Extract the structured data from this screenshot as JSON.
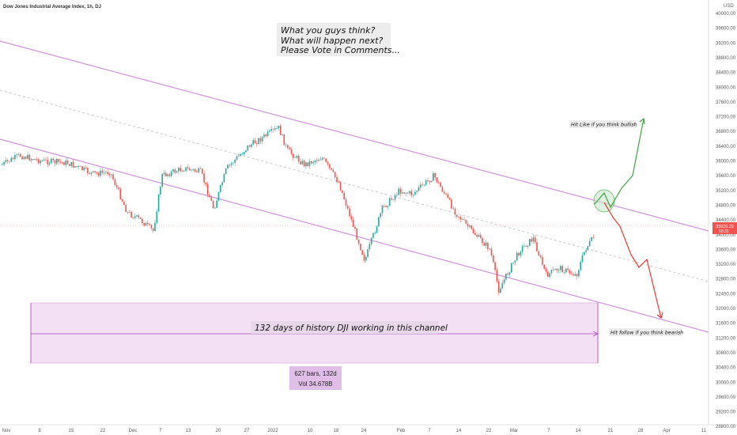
{
  "header": {
    "title": "Dow Jones Industrial Average Index, 1h, DJ"
  },
  "annotations": {
    "question": [
      "What you guys think?",
      "What will happen next?",
      "Please Vote in Comments..."
    ],
    "bullish": "Hit Like if you think bullish",
    "bearish": "Hit follow if you think bearish",
    "channel": "132 days of history DJI working in this channel",
    "range_bars": "627 bars, 132d",
    "range_vol": "Vol 34.678B"
  },
  "price_axis": {
    "currency": "USD",
    "labels": [
      "40000.00",
      "39600.00",
      "39200.00",
      "38800.00",
      "38400.00",
      "38000.00",
      "37600.00",
      "37200.00",
      "36800.00",
      "36400.00",
      "36000.00",
      "35600.00",
      "35200.00",
      "34800.00",
      "34400.00",
      "34000.00",
      "33600.00",
      "33200.00",
      "32800.00",
      "32400.00",
      "32000.00",
      "31600.00",
      "31200.00",
      "30800.00",
      "30400.00",
      "30000.00",
      "29600.00",
      "29200.00",
      "28800.00",
      "28400.00"
    ],
    "current_price": "33929.29",
    "current_time": "10:31"
  },
  "time_axis": {
    "labels": [
      "Nov",
      "8",
      "15",
      "22",
      "Dec",
      "7",
      "13",
      "20",
      "27",
      "2022",
      "10",
      "18",
      "24",
      "Feb",
      "7",
      "14",
      "22",
      "Mar",
      "7",
      "14",
      "21",
      "28",
      "Apr",
      "11"
    ]
  },
  "colors": {
    "channel": "#ce93d8",
    "up": "#26a69a",
    "down": "#ef5350",
    "bull_arrow": "#4caf50",
    "bear_arrow": "#e53935",
    "range_fill": "#f3e0f5"
  },
  "chart_data": {
    "type": "candlestick",
    "symbol": "Dow Jones Industrial Average Index",
    "interval": "1h",
    "y_range": [
      28300,
      40100
    ],
    "approx_closes": [
      [
        "2021-11-01",
        35900
      ],
      [
        "2021-11-05",
        36150
      ],
      [
        "2021-11-10",
        36000
      ],
      [
        "2021-11-16",
        35950
      ],
      [
        "2021-11-22",
        35650
      ],
      [
        "2021-11-26",
        35700
      ],
      [
        "2021-11-30",
        34600
      ],
      [
        "2021-12-03",
        34400
      ],
      [
        "2021-12-06",
        34100
      ],
      [
        "2021-12-08",
        35600
      ],
      [
        "2021-12-13",
        35800
      ],
      [
        "2021-12-17",
        35700
      ],
      [
        "2021-12-20",
        34700
      ],
      [
        "2021-12-23",
        35800
      ],
      [
        "2021-12-28",
        36400
      ],
      [
        "2022-01-04",
        36900
      ],
      [
        "2022-01-06",
        36300
      ],
      [
        "2022-01-10",
        35900
      ],
      [
        "2022-01-14",
        36100
      ],
      [
        "2022-01-18",
        35400
      ],
      [
        "2022-01-24",
        33300
      ],
      [
        "2022-01-28",
        34700
      ],
      [
        "2022-02-01",
        35200
      ],
      [
        "2022-02-04",
        35100
      ],
      [
        "2022-02-09",
        35600
      ],
      [
        "2022-02-14",
        34600
      ],
      [
        "2022-02-17",
        34200
      ],
      [
        "2022-02-22",
        33600
      ],
      [
        "2022-02-24",
        32500
      ],
      [
        "2022-03-01",
        33600
      ],
      [
        "2022-03-04",
        33900
      ],
      [
        "2022-03-07",
        32900
      ],
      [
        "2022-03-10",
        33100
      ],
      [
        "2022-03-14",
        32900
      ],
      [
        "2022-03-16",
        33600
      ],
      [
        "2022-03-18",
        33929
      ]
    ]
  }
}
